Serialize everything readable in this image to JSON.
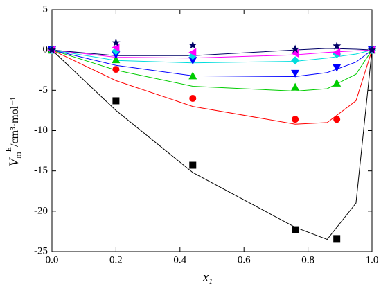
{
  "chart_data": {
    "type": "scatter",
    "x_label": {
      "symbol": "x",
      "sub": "1"
    },
    "y_label": {
      "symbol": "V",
      "sub": "m",
      "sup": "E",
      "unit": "/cm³·mol⁻¹"
    },
    "xlim": [
      0,
      1
    ],
    "ylim": [
      -25,
      5
    ],
    "xticks": [
      {
        "value": 0,
        "label": "0.0"
      },
      0.2,
      0.4,
      0.6,
      0.8,
      {
        "value": 1,
        "label": "1.0"
      }
    ],
    "yticks": [
      5,
      0,
      -5,
      -10,
      -15,
      -20,
      -25
    ],
    "x": [
      0,
      0.2,
      0.44,
      0.76,
      0.89,
      1
    ],
    "fit_x": [
      0,
      0.2,
      0.44,
      0.76,
      0.86,
      0.95,
      1
    ],
    "series": [
      {
        "marker": "square",
        "color": "#000000",
        "values": [
          0,
          -6.3,
          -14.3,
          -22.3,
          -23.4,
          0
        ],
        "fit_values": [
          0,
          -7.5,
          -15.2,
          -22.0,
          -23.5,
          -19.0,
          0
        ]
      },
      {
        "marker": "circle",
        "color": "#ff0000",
        "values": [
          0,
          -2.4,
          -6.0,
          -8.6,
          -8.6,
          0
        ],
        "fit_values": [
          0,
          -3.8,
          -7.0,
          -9.2,
          -9.0,
          -6.3,
          0
        ]
      },
      {
        "marker": "triangle-up",
        "color": "#00cc00",
        "values": [
          0,
          -1.2,
          -3.2,
          -4.6,
          -4.1,
          0
        ],
        "fit_values": [
          0,
          -2.5,
          -4.5,
          -5.1,
          -4.8,
          -3.0,
          0
        ]
      },
      {
        "marker": "triangle-down",
        "color": "#0000ff",
        "values": [
          0,
          -0.6,
          -1.3,
          -2.9,
          -2.2,
          0
        ],
        "fit_values": [
          0,
          -1.9,
          -3.2,
          -3.3,
          -2.8,
          -1.5,
          0
        ]
      },
      {
        "marker": "diamond",
        "color": "#00dddd",
        "values": [
          0,
          -0.1,
          -0.7,
          -1.3,
          -0.5,
          0
        ],
        "fit_values": [
          0,
          -1.3,
          -1.6,
          -1.4,
          -1.0,
          -0.5,
          0
        ]
      },
      {
        "marker": "triangle-left",
        "color": "#ff00ff",
        "values": [
          0,
          0.3,
          -0.3,
          -0.4,
          -0.3,
          0
        ],
        "fit_values": [
          0,
          -0.9,
          -1.0,
          -0.6,
          -0.3,
          -0.1,
          0
        ]
      },
      {
        "marker": "star",
        "color": "#000066",
        "values": [
          0,
          0.9,
          0.6,
          0.1,
          0.5,
          0
        ],
        "fit_values": [
          0,
          -0.7,
          -0.7,
          0.0,
          0.2,
          0.1,
          0
        ]
      }
    ]
  }
}
